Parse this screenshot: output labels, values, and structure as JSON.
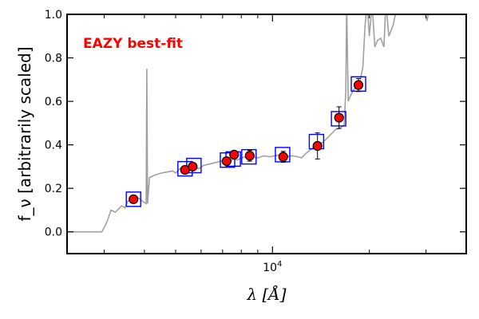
{
  "chart_data": {
    "type": "scatter",
    "title": "",
    "xlabel": "λ [Å]",
    "ylabel": "f_ν [arbitrarily scaled]",
    "xscale": "log",
    "xlim": [
      2300,
      40000
    ],
    "ylim": [
      -0.1,
      1.0
    ],
    "yticks": [
      "0.0",
      "0.2",
      "0.4",
      "0.6",
      "0.8",
      "1.0"
    ],
    "yticks_values": [
      0.0,
      0.2,
      0.4,
      0.6,
      0.8,
      1.0
    ],
    "xtick_labels": [
      {
        "value": 10000,
        "label": "10",
        "exp": "4"
      }
    ],
    "grid": false,
    "annotation": {
      "text": "EAZY best-fit",
      "color": "#ff0000"
    },
    "colors": {
      "spectrum": "#a0a0a0",
      "observed": "#ff0000",
      "model_box": "#0000ff",
      "errorbar": "#000000"
    },
    "series": [
      {
        "kind": "model_photometry_boxes",
        "points": [
          {
            "x": 3700,
            "y": 0.15
          },
          {
            "x": 5350,
            "y": 0.29
          },
          {
            "x": 5700,
            "y": 0.305
          },
          {
            "x": 7250,
            "y": 0.33
          },
          {
            "x": 7550,
            "y": 0.335
          },
          {
            "x": 8450,
            "y": 0.345
          },
          {
            "x": 10750,
            "y": 0.355
          },
          {
            "x": 13700,
            "y": 0.415
          },
          {
            "x": 16050,
            "y": 0.52
          },
          {
            "x": 18500,
            "y": 0.68
          }
        ]
      },
      {
        "kind": "observed_photometry",
        "points": [
          {
            "x": 3700,
            "y": 0.15,
            "err": 0.015
          },
          {
            "x": 5350,
            "y": 0.285,
            "err": 0.01
          },
          {
            "x": 5650,
            "y": 0.3,
            "err": 0.01
          },
          {
            "x": 7200,
            "y": 0.325,
            "err": 0.015
          },
          {
            "x": 7600,
            "y": 0.355,
            "err": 0.015
          },
          {
            "x": 8500,
            "y": 0.35,
            "err": 0.025
          },
          {
            "x": 10800,
            "y": 0.345,
            "err": 0.025
          },
          {
            "x": 13800,
            "y": 0.395,
            "err": 0.06
          },
          {
            "x": 16100,
            "y": 0.525,
            "err": 0.05
          },
          {
            "x": 18500,
            "y": 0.675,
            "err": 0.03
          }
        ]
      },
      {
        "kind": "model_spectrum",
        "points": [
          [
            2300,
            0.0
          ],
          [
            2950,
            0.0
          ],
          [
            3050,
            0.04
          ],
          [
            3150,
            0.1
          ],
          [
            3250,
            0.09
          ],
          [
            3300,
            0.1
          ],
          [
            3400,
            0.12
          ],
          [
            3480,
            0.11
          ],
          [
            3550,
            0.14
          ],
          [
            3650,
            0.15
          ],
          [
            3750,
            0.155
          ],
          [
            3850,
            0.155
          ],
          [
            3950,
            0.14
          ],
          [
            4050,
            0.13
          ],
          [
            4070,
            0.75
          ],
          [
            4090,
            0.13
          ],
          [
            4150,
            0.25
          ],
          [
            4300,
            0.26
          ],
          [
            4500,
            0.27
          ],
          [
            4700,
            0.275
          ],
          [
            4900,
            0.28
          ],
          [
            5000,
            0.27
          ],
          [
            5150,
            0.29
          ],
          [
            5350,
            0.29
          ],
          [
            5500,
            0.285
          ],
          [
            5700,
            0.3
          ],
          [
            5900,
            0.29
          ],
          [
            6100,
            0.305
          ],
          [
            6300,
            0.31
          ],
          [
            6500,
            0.315
          ],
          [
            6700,
            0.32
          ],
          [
            6900,
            0.325
          ],
          [
            7100,
            0.33
          ],
          [
            7300,
            0.32
          ],
          [
            7550,
            0.335
          ],
          [
            7800,
            0.33
          ],
          [
            8000,
            0.34
          ],
          [
            8300,
            0.345
          ],
          [
            8700,
            0.345
          ],
          [
            9000,
            0.34
          ],
          [
            9400,
            0.35
          ],
          [
            9800,
            0.345
          ],
          [
            10200,
            0.35
          ],
          [
            10600,
            0.355
          ],
          [
            11000,
            0.345
          ],
          [
            11500,
            0.35
          ],
          [
            12000,
            0.345
          ],
          [
            12300,
            0.34
          ],
          [
            12700,
            0.36
          ],
          [
            13200,
            0.38
          ],
          [
            13700,
            0.4
          ],
          [
            14300,
            0.41
          ],
          [
            15000,
            0.44
          ],
          [
            15700,
            0.47
          ],
          [
            16300,
            0.48
          ],
          [
            16700,
            0.49
          ],
          [
            16900,
            0.65
          ],
          [
            17000,
            1.05
          ],
          [
            17200,
            0.6
          ],
          [
            17400,
            0.62
          ],
          [
            17800,
            0.65
          ],
          [
            18300,
            0.67
          ],
          [
            18700,
            0.69
          ],
          [
            19100,
            0.76
          ],
          [
            19400,
            0.95
          ],
          [
            19700,
            1.05
          ],
          [
            20000,
            0.9
          ],
          [
            20400,
            1.05
          ],
          [
            20800,
            0.85
          ],
          [
            21200,
            0.88
          ],
          [
            21700,
            0.89
          ],
          [
            22200,
            0.85
          ],
          [
            22500,
            1.05
          ],
          [
            23000,
            0.9
          ],
          [
            23700,
            0.95
          ],
          [
            24500,
            1.05
          ],
          [
            25500,
            1.0
          ],
          [
            26500,
            1.05
          ],
          [
            28000,
            1.0
          ],
          [
            29300,
            1.05
          ],
          [
            30200,
            0.97
          ],
          [
            31000,
            1.05
          ]
        ]
      }
    ]
  }
}
